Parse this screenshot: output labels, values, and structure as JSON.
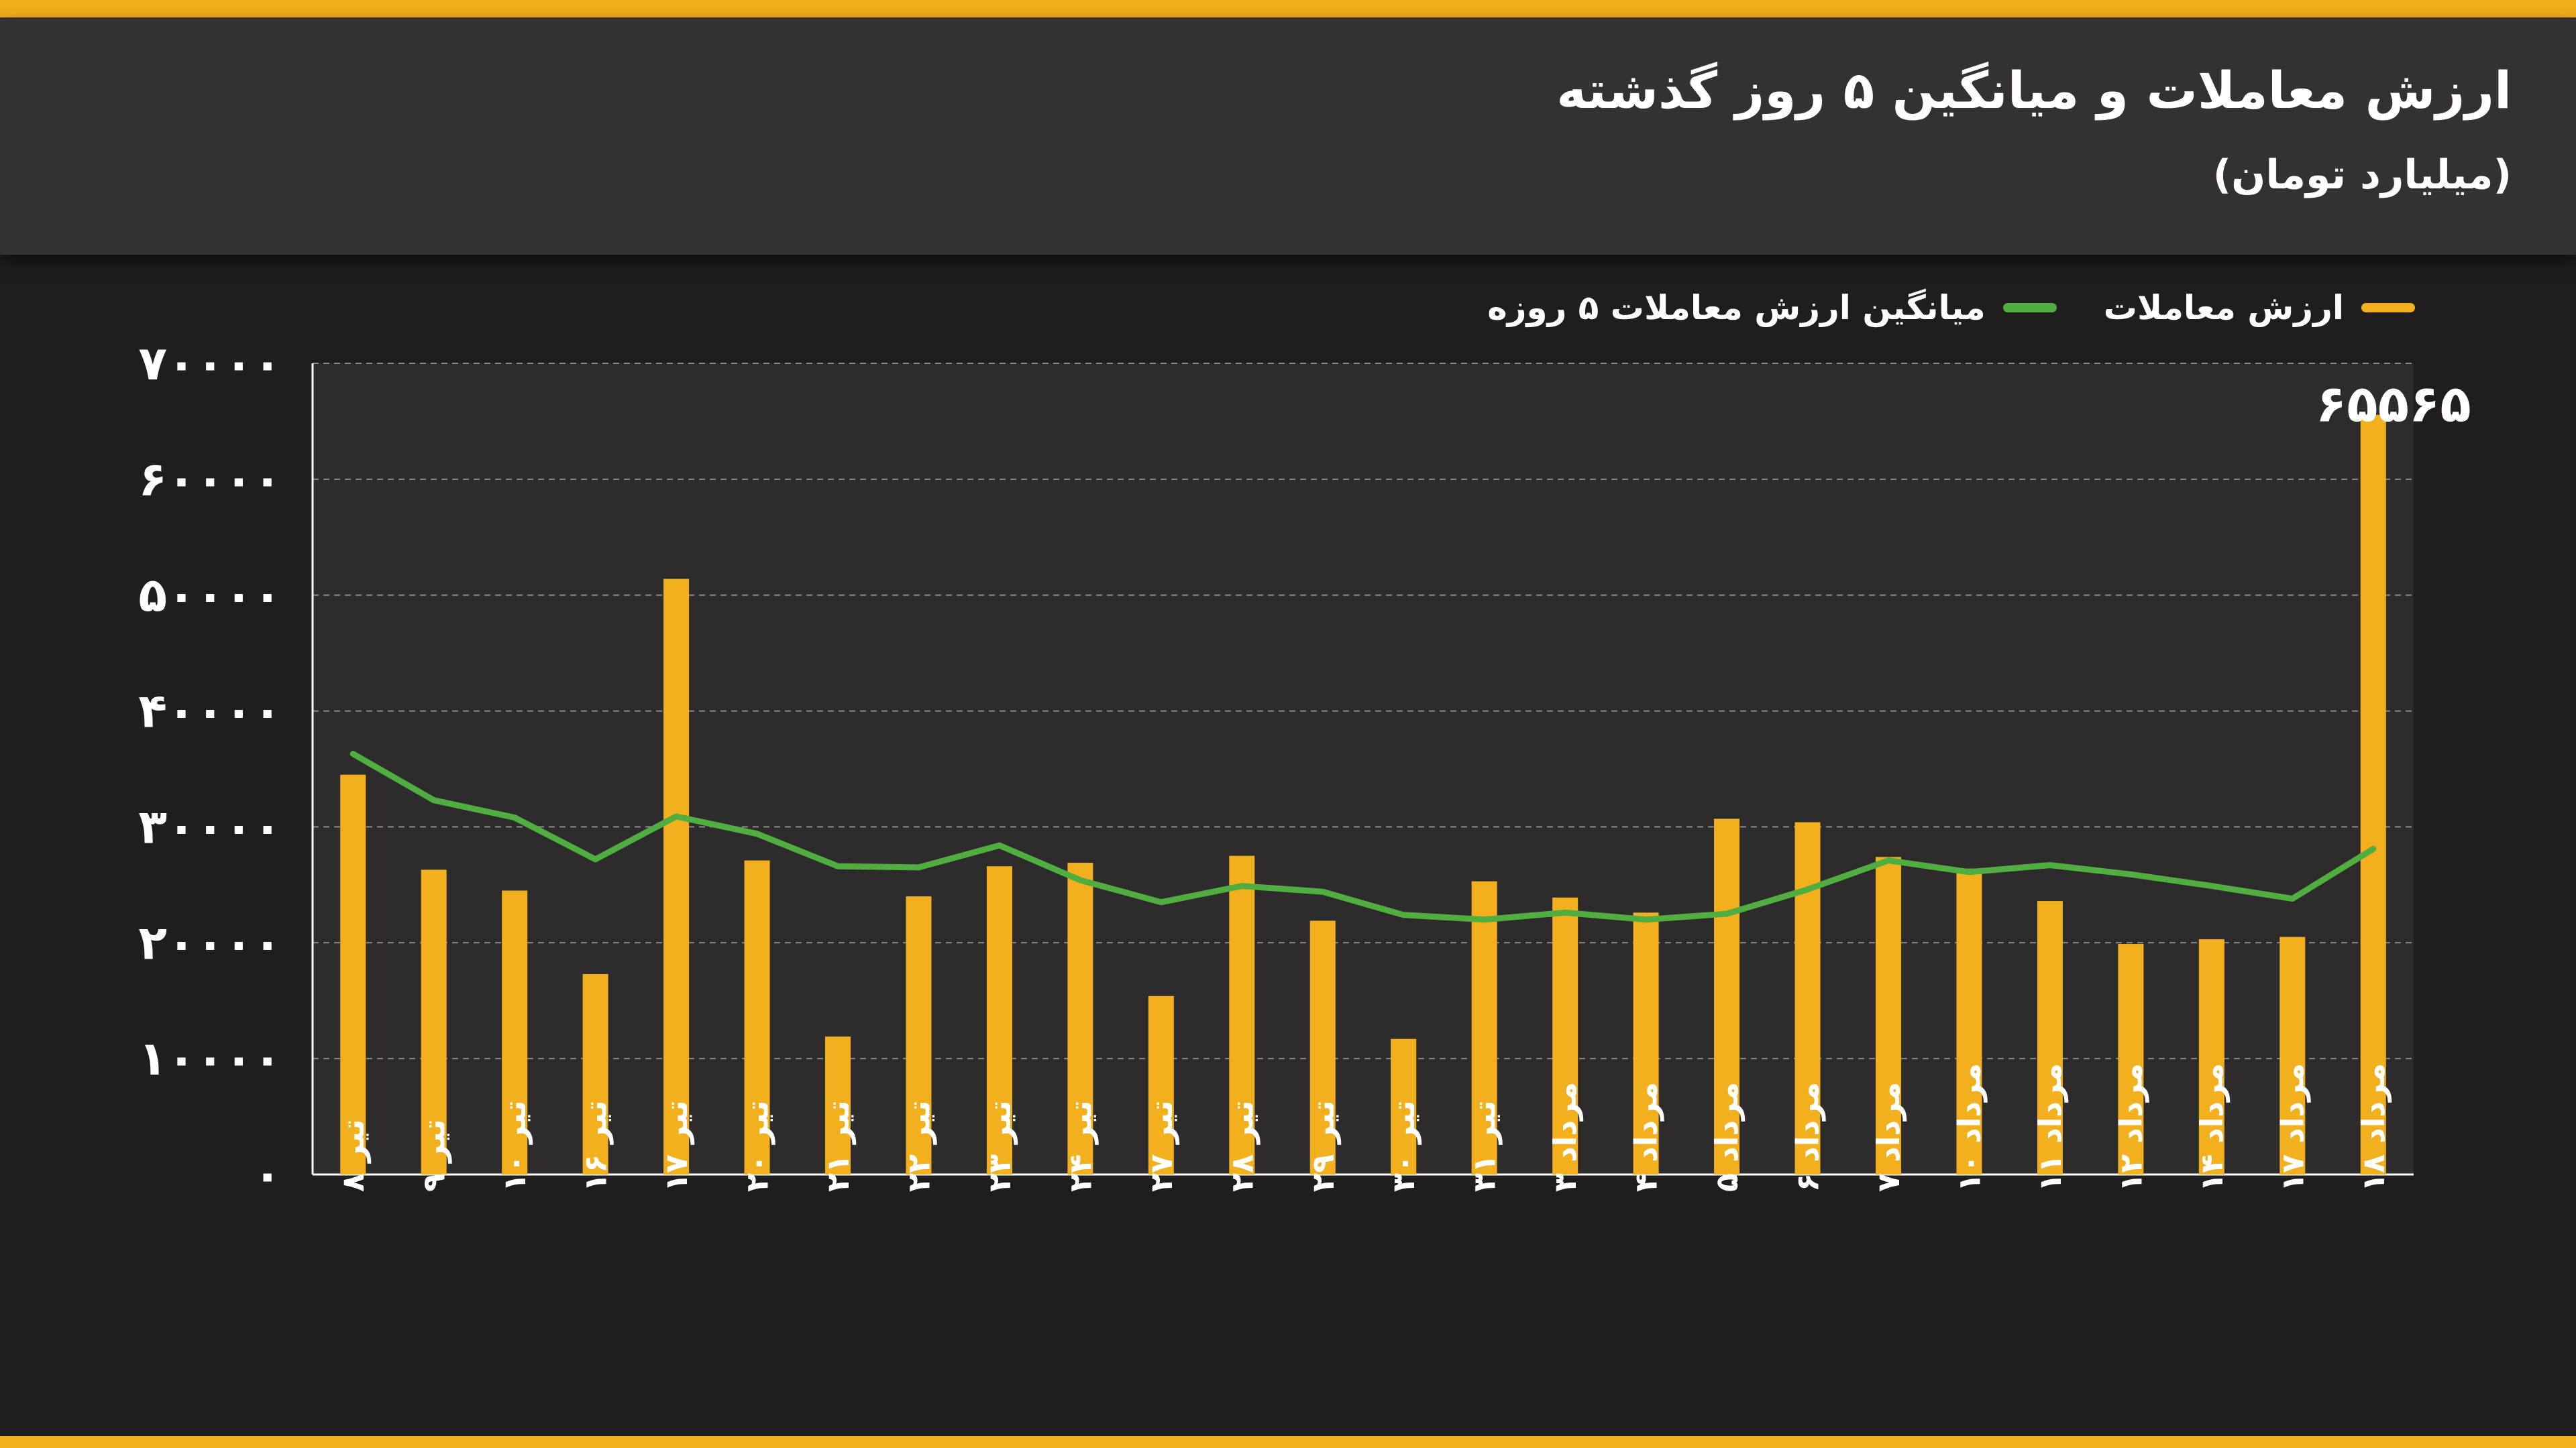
{
  "header": {
    "title": "ارزش معاملات و میانگین ۵ روز گذشته",
    "subtitle": "(میلیارد تومان)"
  },
  "colors": {
    "bar": "#f2b01e",
    "line": "#4fae3f",
    "plot_bg": "#2d2b2c",
    "grid": "#8a8a8a",
    "accent_stripe": "#f2b01e"
  },
  "chart_data": {
    "type": "bar",
    "title": "ارزش معاملات و میانگین ۵ روز گذشته",
    "subtitle": "(میلیارد تومان)",
    "ylim": [
      0,
      70000
    ],
    "yticks": [
      0,
      10000,
      20000,
      30000,
      40000,
      50000,
      60000,
      70000
    ],
    "ytick_labels": [
      "۰",
      "۱۰۰۰۰",
      "۲۰۰۰۰",
      "۳۰۰۰۰",
      "۴۰۰۰۰",
      "۵۰۰۰۰",
      "۶۰۰۰۰",
      "۷۰۰۰۰"
    ],
    "grid": true,
    "legend_position": "top-right",
    "categories": [
      "تیر ۸",
      "تیر ۹",
      "تیر ۱۰",
      "تیر ۱۶",
      "تیر ۱۷",
      "تیر ۲۰",
      "تیر ۲۱",
      "تیر ۲۲",
      "تیر ۲۳",
      "تیر ۲۴",
      "تیر ۲۷",
      "تیر ۲۸",
      "تیر ۲۹",
      "تیر ۳۰",
      "تیر ۳۱",
      "مرداد ۳",
      "مرداد ۴",
      "مرداد ۵",
      "مرداد ۶",
      "مرداد ۷",
      "مرداد ۱۰",
      "مرداد ۱۱",
      "مرداد ۱۲",
      "مرداد ۱۴",
      "مرداد ۱۷",
      "مرداد ۱۸"
    ],
    "series": [
      {
        "name": "ارزش معاملات",
        "kind": "bar",
        "values": [
          34500,
          26300,
          24500,
          17300,
          51400,
          27100,
          11900,
          24000,
          26600,
          26900,
          15400,
          27500,
          21900,
          11700,
          25300,
          23900,
          22600,
          30700,
          30400,
          27400,
          26400,
          23600,
          19900,
          20300,
          20500,
          65565
        ]
      },
      {
        "name": "میانگین ارزش معاملات ۵ روزه",
        "kind": "line",
        "values": [
          36300,
          32300,
          30800,
          27200,
          30900,
          29400,
          26600,
          26500,
          28400,
          25400,
          23500,
          24900,
          24400,
          22400,
          22000,
          22600,
          22000,
          22500,
          24600,
          27100,
          26100,
          26700,
          25900,
          24900,
          23800,
          28100
        ]
      }
    ],
    "annotations": [
      {
        "category": "مرداد ۱۸",
        "text": "۶۵۵۶۵"
      }
    ]
  }
}
